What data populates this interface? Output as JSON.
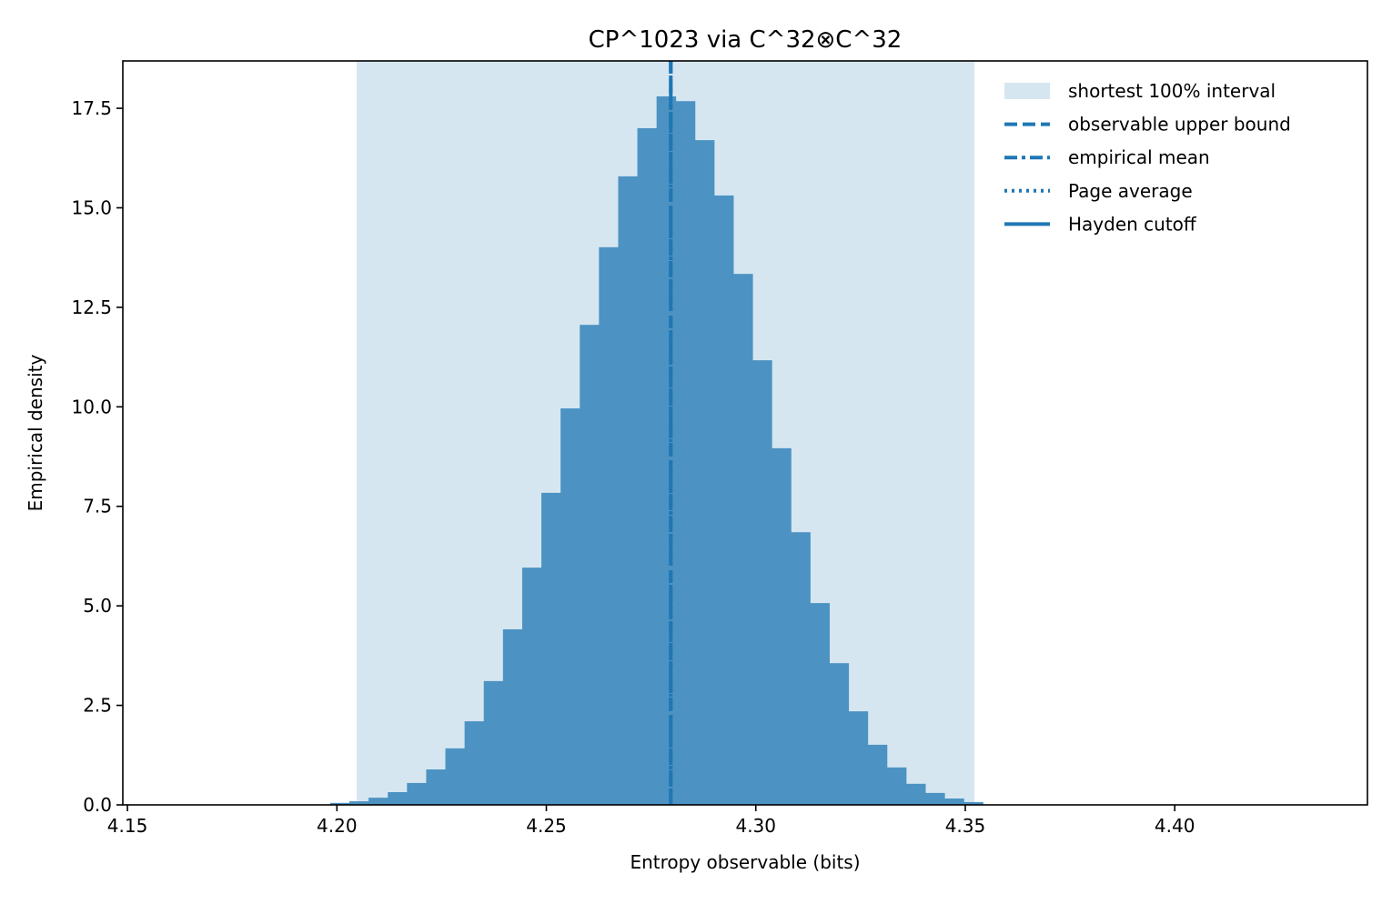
{
  "chart_data": {
    "type": "bar",
    "title": "CP^1023 via C^32⊗C^32",
    "xlabel": "Entropy observable (bits)",
    "ylabel": "Empirical density",
    "xlim": [
      4.1489,
      4.446
    ],
    "ylim": [
      0,
      18.69
    ],
    "xticks": [
      "4.15",
      "4.20",
      "4.25",
      "4.30",
      "4.35",
      "4.40"
    ],
    "yticks": [
      "0.0",
      "2.5",
      "5.0",
      "7.5",
      "10.0",
      "12.5",
      "15.0",
      "17.5"
    ],
    "grid": false,
    "legend_placement": "top-right",
    "colors": {
      "bars": "#4c93c3",
      "interval": "#d6e6f0",
      "lines": "#1f77b4"
    },
    "histogram": {
      "bin_start": 4.1984,
      "bin_width": 0.004583,
      "densities": [
        0.05,
        0.09,
        0.18,
        0.32,
        0.55,
        0.89,
        1.42,
        2.1,
        3.11,
        4.41,
        5.96,
        7.84,
        9.96,
        12.06,
        14.01,
        15.79,
        17.0,
        17.8,
        17.68,
        16.7,
        15.31,
        13.34,
        11.17,
        8.96,
        6.85,
        5.07,
        3.56,
        2.35,
        1.51,
        0.94,
        0.53,
        0.3,
        0.16,
        0.07
      ]
    },
    "interval": {
      "label": "shortest 100% interval",
      "low": 4.2047,
      "high": 4.3522
    },
    "vlines": [
      {
        "label": "observable upper bound",
        "style": "dashed",
        "x": 4.2797
      },
      {
        "label": "empirical mean",
        "style": "dashdot",
        "x": 4.2797
      },
      {
        "label": "Page average",
        "style": "dotted",
        "x": 4.2797
      },
      {
        "label": "Hayden cutoff",
        "style": "solid"
      }
    ]
  }
}
